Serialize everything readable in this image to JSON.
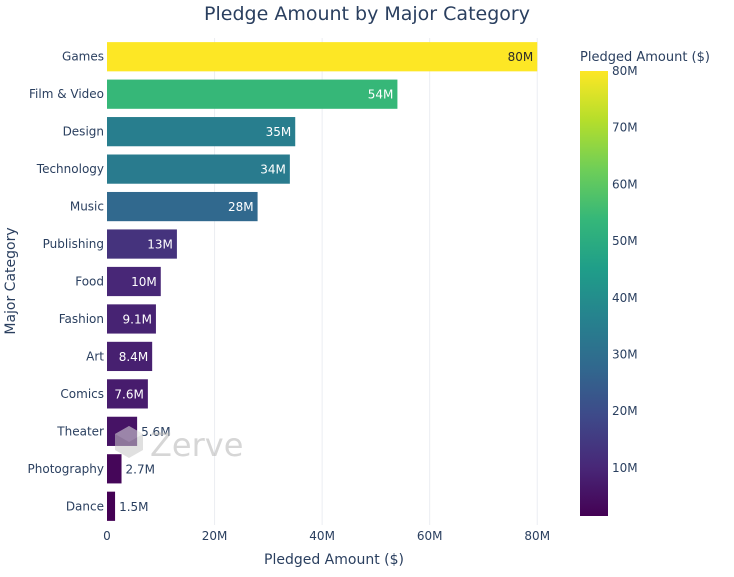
{
  "chart_data": {
    "type": "bar",
    "orientation": "horizontal",
    "title": "Pledge Amount by Major Category",
    "xlabel": "Pledged Amount ($)",
    "ylabel": "Major Category",
    "xlim": [
      0,
      82
    ],
    "x_ticks": [
      0,
      20,
      40,
      60,
      80
    ],
    "x_tick_labels": [
      "0",
      "20M",
      "40M",
      "60M",
      "80M"
    ],
    "grid": true,
    "categories": [
      "Games",
      "Film & Video",
      "Design",
      "Technology",
      "Music",
      "Publishing",
      "Food",
      "Fashion",
      "Art",
      "Comics",
      "Theater",
      "Photography",
      "Dance"
    ],
    "values": [
      80,
      54,
      35,
      34,
      28,
      13,
      10,
      9.1,
      8.4,
      7.6,
      5.6,
      2.7,
      1.5
    ],
    "value_labels": [
      "80M",
      "54M",
      "35M",
      "34M",
      "28M",
      "13M",
      "10M",
      "9.1M",
      "8.4M",
      "7.6M",
      "5.6M",
      "2.7M",
      "1.5M"
    ],
    "colorbar": {
      "title": "Pledged Amount ($)",
      "range": [
        1.5,
        80
      ],
      "ticks": [
        10,
        20,
        30,
        40,
        50,
        60,
        70,
        80
      ],
      "tick_labels": [
        "10M",
        "20M",
        "30M",
        "40M",
        "50M",
        "60M",
        "70M",
        "80M"
      ],
      "colorscale": [
        "#440154",
        "#482878",
        "#3e4989",
        "#31688e",
        "#26828e",
        "#1f9e89",
        "#35b779",
        "#6ece58",
        "#b5de2b",
        "#fde725"
      ]
    }
  },
  "watermark": {
    "text": "Zerve"
  }
}
